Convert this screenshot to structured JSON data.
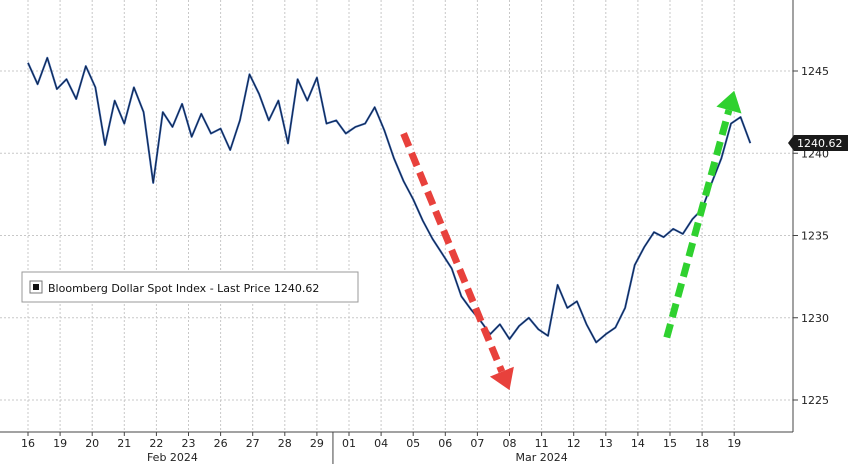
{
  "legend": {
    "label": "Bloomberg Dollar Spot Index - Last Price 1240.62"
  },
  "last_price_tag": "1240.62",
  "colors": {
    "line": "#2e5aa8",
    "down_arrow": "#e8413c",
    "up_arrow": "#2fd12f",
    "grid": "#c8c8c8",
    "tag_bg": "#1a1a1a"
  },
  "chart_data": {
    "type": "line",
    "title": "",
    "xlabel": "",
    "ylabel": "",
    "ylim": [
      1224,
      1253
    ],
    "yticks": [
      1225,
      1230,
      1235,
      1240,
      1245
    ],
    "grid": true,
    "legend_position": "left",
    "x_day_labels": [
      "16",
      "19",
      "20",
      "21",
      "22",
      "23",
      "26",
      "27",
      "28",
      "29",
      "01",
      "04",
      "05",
      "06",
      "07",
      "08",
      "11",
      "12",
      "13",
      "14",
      "15",
      "18",
      "19"
    ],
    "month_labels": [
      {
        "label": "Feb 2024",
        "from_day_index": 0,
        "to_day_index": 9
      },
      {
        "label": "Mar 2024",
        "from_day_index": 10,
        "to_day_index": 22
      }
    ],
    "series": [
      {
        "name": "Bloomberg Dollar Spot Index - Last Price 1240.62",
        "x": [
          0,
          0.3,
          0.6,
          0.9,
          1.2,
          1.5,
          1.8,
          2.1,
          2.4,
          2.7,
          3.0,
          3.3,
          3.6,
          3.9,
          4.2,
          4.5,
          4.8,
          5.1,
          5.4,
          5.7,
          6.0,
          6.3,
          6.6,
          6.9,
          7.2,
          7.5,
          7.8,
          8.1,
          8.4,
          8.7,
          9.0,
          9.3,
          9.6,
          9.9,
          10.2,
          10.5,
          10.8,
          11.1,
          11.4,
          11.7,
          12.0,
          12.3,
          12.6,
          12.9,
          13.2,
          13.5,
          13.8,
          14.1,
          14.4,
          14.7,
          15.0,
          15.3,
          15.6,
          15.9,
          16.2,
          16.5,
          16.8,
          17.1,
          17.4,
          17.7,
          18.0,
          18.3,
          18.6,
          18.9,
          19.2,
          19.5,
          19.8,
          20.1,
          20.4,
          20.7,
          21.0,
          21.3,
          21.6,
          21.9,
          22.2,
          22.5
        ],
        "values": [
          1245.5,
          1244.2,
          1245.8,
          1243.9,
          1244.5,
          1243.3,
          1245.3,
          1244.0,
          1240.5,
          1243.2,
          1241.8,
          1244.0,
          1242.5,
          1238.2,
          1242.5,
          1241.6,
          1243.0,
          1241.0,
          1242.4,
          1241.2,
          1241.5,
          1240.2,
          1242.0,
          1244.8,
          1243.6,
          1242.0,
          1243.2,
          1240.6,
          1244.5,
          1243.2,
          1244.6,
          1241.8,
          1242.0,
          1241.2,
          1241.6,
          1241.8,
          1242.8,
          1241.4,
          1239.7,
          1238.3,
          1237.2,
          1235.9,
          1234.8,
          1233.9,
          1233.0,
          1231.3,
          1230.5,
          1229.8,
          1229.0,
          1229.6,
          1228.7,
          1229.5,
          1230.0,
          1229.3,
          1228.9,
          1232.0,
          1230.6,
          1231.0,
          1229.6,
          1228.5,
          1229.0,
          1229.4,
          1230.6,
          1233.2,
          1234.3,
          1235.2,
          1234.9,
          1235.4,
          1235.1,
          1236.0,
          1236.6,
          1238.2,
          1239.7,
          1241.8,
          1242.2,
          1240.62
        ]
      }
    ],
    "annotations": [
      {
        "type": "arrow",
        "direction": "down",
        "color": "red",
        "from": {
          "x": 11.7,
          "y": 1241.2
        },
        "to": {
          "x": 15.0,
          "y": 1225.6
        }
      },
      {
        "type": "arrow",
        "direction": "up",
        "color": "green",
        "from": {
          "x": 19.9,
          "y": 1228.8
        },
        "to": {
          "x": 22.0,
          "y": 1243.8
        }
      }
    ]
  }
}
